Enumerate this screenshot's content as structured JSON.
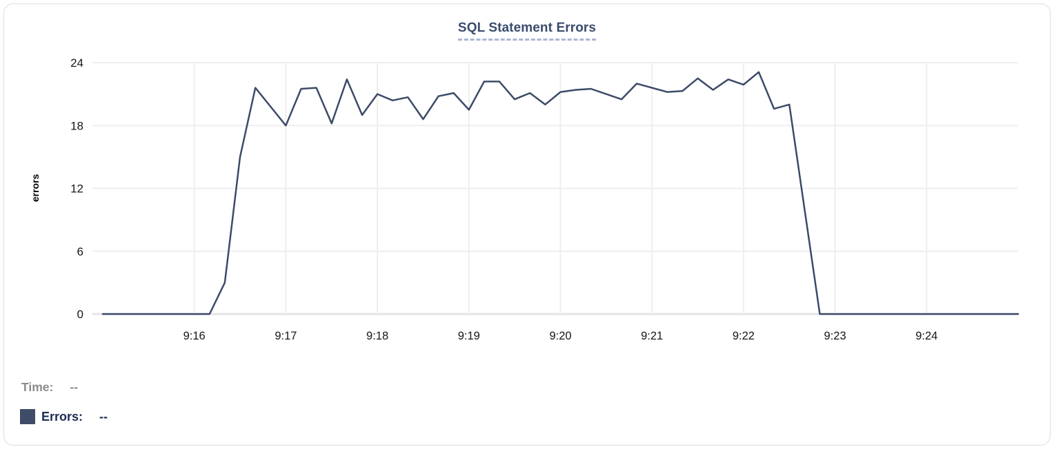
{
  "chart": {
    "title": "SQL Statement Errors",
    "y_axis_title": "errors"
  },
  "legend": {
    "time_label": "Time:",
    "time_value": "--",
    "errors_label": "Errors:",
    "errors_value": "--"
  },
  "colors": {
    "line": "#3c4a68",
    "swatch": "#3e4c68",
    "title": "#3a4c6e",
    "title_underline": "#a9b7d2",
    "legend_time": "#8b8b8b",
    "legend_errors": "#1d2c55",
    "grid": "#eeeeee",
    "zero_line": "#e4e4e4",
    "axis_text": "#161616"
  },
  "chart_data": {
    "type": "line",
    "title": "SQL Statement Errors",
    "xlabel": "",
    "ylabel": "errors",
    "x_start": "9:15:00",
    "x_end": "9:25:00",
    "x_step_seconds": 10,
    "x_ticks": [
      "9:16",
      "9:17",
      "9:18",
      "9:19",
      "9:20",
      "9:21",
      "9:22",
      "9:23",
      "9:24"
    ],
    "y_ticks": [
      0,
      6,
      12,
      18,
      24
    ],
    "ylim": [
      0,
      24
    ],
    "grid": true,
    "legend_position": "bottom-left",
    "series": [
      {
        "name": "Errors",
        "color": "#3c4a68",
        "values": [
          0,
          0,
          0,
          0,
          0,
          0,
          0,
          0,
          3,
          15,
          21.6,
          19.8,
          18,
          21.5,
          21.6,
          18.2,
          22.4,
          19,
          21,
          20.4,
          20.7,
          18.6,
          20.8,
          21.1,
          19.5,
          22.2,
          22.2,
          20.5,
          21.1,
          20,
          21.2,
          21.4,
          21.5,
          21,
          20.5,
          22,
          21.6,
          21.2,
          21.3,
          22.5,
          21.4,
          22.4,
          21.9,
          23.1,
          19.6,
          20,
          10,
          0,
          0,
          0,
          0,
          0,
          0,
          0,
          0,
          0,
          0,
          0,
          0,
          0,
          0
        ]
      }
    ]
  }
}
